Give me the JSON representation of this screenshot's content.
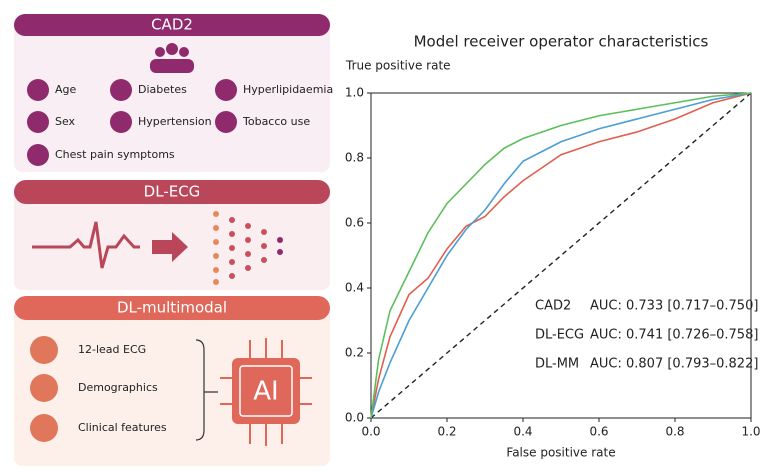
{
  "panels": [
    {
      "title": "CAD2",
      "items": [
        "Age",
        "Diabetes",
        "Hyperlipidaemia",
        "Sex",
        "Hypertension",
        "Tobacco use",
        "Chest pain symptoms"
      ]
    },
    {
      "title": "DL-ECG"
    },
    {
      "title": "DL-multimodal",
      "items": [
        "12-lead ECG",
        "Demographics",
        "Clinical features"
      ],
      "chip": "AI"
    }
  ],
  "chart_data": {
    "type": "line",
    "title": "Model receiver operator characteristics",
    "ylabel": "True positive rate",
    "xlabel": "False positive rate",
    "x": [
      0,
      0.02,
      0.05,
      0.1,
      0.15,
      0.2,
      0.25,
      0.3,
      0.35,
      0.4,
      0.45,
      0.5,
      0.6,
      0.7,
      0.8,
      0.9,
      1.0
    ],
    "series": [
      {
        "name": "CAD2",
        "color": "#e0604f",
        "auc": "AUC: 0.733 [0.717–0.750]",
        "values": [
          0,
          0.12,
          0.25,
          0.38,
          0.43,
          0.52,
          0.59,
          0.62,
          0.68,
          0.73,
          0.77,
          0.81,
          0.85,
          0.88,
          0.92,
          0.97,
          1.0
        ]
      },
      {
        "name": "DL-ECG",
        "color": "#4c9ed6",
        "auc": "AUC: 0.741 [0.726–0.758]",
        "values": [
          0,
          0.08,
          0.17,
          0.3,
          0.4,
          0.5,
          0.58,
          0.64,
          0.72,
          0.79,
          0.82,
          0.85,
          0.89,
          0.92,
          0.95,
          0.98,
          1.0
        ]
      },
      {
        "name": "DL-MM",
        "color": "#5cbf5c",
        "auc": "AUC: 0.807 [0.793–0.822]",
        "values": [
          0,
          0.18,
          0.33,
          0.45,
          0.57,
          0.66,
          0.72,
          0.78,
          0.83,
          0.86,
          0.88,
          0.9,
          0.93,
          0.95,
          0.97,
          0.99,
          1.0
        ]
      }
    ],
    "xlim": [
      0,
      1
    ],
    "ylim": [
      0,
      1
    ],
    "xticks": [
      {
        "value": 0,
        "label": "0.0"
      },
      {
        "value": 0.2,
        "label": "0.2"
      },
      {
        "value": 0.4,
        "label": "0.4"
      },
      {
        "value": 0.6,
        "label": "0.6"
      },
      {
        "value": 0.8,
        "label": "0.8"
      },
      {
        "value": 1,
        "label": "1.0"
      }
    ],
    "yticks": [
      {
        "value": 0,
        "label": "0.0"
      },
      {
        "value": 0.2,
        "label": "0.2"
      },
      {
        "value": 0.4,
        "label": "0.4"
      },
      {
        "value": 0.6,
        "label": "0.6"
      },
      {
        "value": 0.8,
        "label": "0.8"
      },
      {
        "value": 1,
        "label": "1.0"
      }
    ],
    "legend": "lower right",
    "grid": false
  }
}
